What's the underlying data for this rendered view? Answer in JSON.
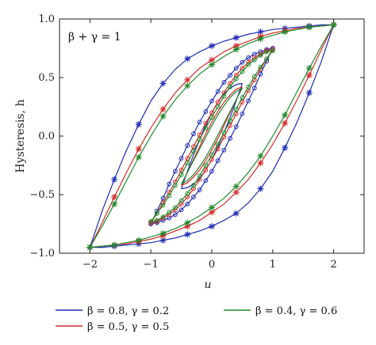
{
  "chart_data": {
    "type": "line",
    "xlabel": "u",
    "ylabel": "Hysteresis, h",
    "annotation": "β + γ = 1",
    "xlim": [
      -2.5,
      2.5
    ],
    "ylim": [
      -1.0,
      1.0
    ],
    "xticks": [
      -2,
      -1,
      0,
      1,
      2
    ],
    "yticks": [
      -1.0,
      -0.5,
      0.0,
      0.5,
      1.0
    ],
    "xtick_labels": [
      "−2",
      "−1",
      "0",
      "1",
      "2"
    ],
    "ytick_labels": [
      "−1.0",
      "−0.5",
      "0.0",
      "0.5",
      "1.0"
    ],
    "grid": false,
    "legend_position": "bottom",
    "series": [
      {
        "name": "β = 0.8, γ = 0.2",
        "color": "#1f2db4",
        "loops": [
          {
            "amplitude": 2,
            "marker": "asterisk",
            "upper": [
              [
                -2,
                -0.95
              ],
              [
                -1.8,
                -0.64
              ],
              [
                -1.6,
                -0.37
              ],
              [
                -1.4,
                -0.12
              ],
              [
                -1.2,
                0.1
              ],
              [
                -1.0,
                0.3
              ],
              [
                -0.8,
                0.45
              ],
              [
                -0.6,
                0.57
              ],
              [
                -0.4,
                0.66
              ],
              [
                -0.2,
                0.72
              ],
              [
                0.0,
                0.77
              ],
              [
                0.2,
                0.81
              ],
              [
                0.4,
                0.84
              ],
              [
                0.6,
                0.87
              ],
              [
                0.8,
                0.89
              ],
              [
                1.0,
                0.91
              ],
              [
                1.2,
                0.92
              ],
              [
                1.4,
                0.93
              ],
              [
                1.6,
                0.94
              ],
              [
                1.8,
                0.95
              ],
              [
                2.0,
                0.95
              ]
            ]
          },
          {
            "amplitude": 1,
            "marker": "circle",
            "upper": [
              [
                -1,
                -0.75
              ],
              [
                -0.9,
                -0.64
              ],
              [
                -0.8,
                -0.53
              ],
              [
                -0.7,
                -0.41
              ],
              [
                -0.6,
                -0.3
              ],
              [
                -0.5,
                -0.19
              ],
              [
                -0.4,
                -0.08
              ],
              [
                -0.3,
                0.02
              ],
              [
                -0.2,
                0.12
              ],
              [
                -0.1,
                0.21
              ],
              [
                0.0,
                0.3
              ],
              [
                0.1,
                0.38
              ],
              [
                0.2,
                0.46
              ],
              [
                0.3,
                0.52
              ],
              [
                0.4,
                0.58
              ],
              [
                0.5,
                0.63
              ],
              [
                0.6,
                0.67
              ],
              [
                0.7,
                0.7
              ],
              [
                0.8,
                0.72
              ],
              [
                0.9,
                0.74
              ],
              [
                1.0,
                0.75
              ]
            ]
          },
          {
            "amplitude": 0.5,
            "marker": "none",
            "upper": [
              [
                -0.5,
                -0.45
              ],
              [
                -0.4,
                -0.3
              ],
              [
                -0.3,
                -0.16
              ],
              [
                -0.2,
                -0.03
              ],
              [
                -0.1,
                0.09
              ],
              [
                0.0,
                0.2
              ],
              [
                0.1,
                0.29
              ],
              [
                0.2,
                0.36
              ],
              [
                0.3,
                0.41
              ],
              [
                0.4,
                0.44
              ],
              [
                0.5,
                0.45
              ]
            ]
          }
        ]
      },
      {
        "name": "β = 0.5, γ = 0.5",
        "color": "#d42a2a",
        "loops": [
          {
            "amplitude": 2,
            "marker": "asterisk",
            "upper": [
              [
                -2,
                -0.95
              ],
              [
                -1.8,
                -0.74
              ],
              [
                -1.6,
                -0.52
              ],
              [
                -1.4,
                -0.31
              ],
              [
                -1.2,
                -0.11
              ],
              [
                -1.0,
                0.07
              ],
              [
                -0.8,
                0.23
              ],
              [
                -0.6,
                0.37
              ],
              [
                -0.4,
                0.48
              ],
              [
                -0.2,
                0.58
              ],
              [
                0.0,
                0.65
              ],
              [
                0.2,
                0.72
              ],
              [
                0.4,
                0.77
              ],
              [
                0.6,
                0.81
              ],
              [
                0.8,
                0.85
              ],
              [
                1.0,
                0.88
              ],
              [
                1.2,
                0.9
              ],
              [
                1.4,
                0.92
              ],
              [
                1.6,
                0.93
              ],
              [
                1.8,
                0.94
              ],
              [
                2.0,
                0.95
              ]
            ]
          },
          {
            "amplitude": 1,
            "marker": "circle",
            "upper": [
              [
                -1,
                -0.74
              ],
              [
                -0.9,
                -0.66
              ],
              [
                -0.8,
                -0.57
              ],
              [
                -0.7,
                -0.48
              ],
              [
                -0.6,
                -0.39
              ],
              [
                -0.5,
                -0.29
              ],
              [
                -0.4,
                -0.19
              ],
              [
                -0.3,
                -0.09
              ],
              [
                -0.2,
                0.01
              ],
              [
                -0.1,
                0.11
              ],
              [
                0.0,
                0.2
              ],
              [
                0.1,
                0.29
              ],
              [
                0.2,
                0.37
              ],
              [
                0.3,
                0.45
              ],
              [
                0.4,
                0.52
              ],
              [
                0.5,
                0.58
              ],
              [
                0.6,
                0.63
              ],
              [
                0.7,
                0.67
              ],
              [
                0.8,
                0.7
              ],
              [
                0.9,
                0.73
              ],
              [
                1.0,
                0.74
              ]
            ]
          },
          {
            "amplitude": 0.5,
            "marker": "none",
            "upper": [
              [
                -0.5,
                -0.42
              ],
              [
                -0.4,
                -0.31
              ],
              [
                -0.3,
                -0.2
              ],
              [
                -0.2,
                -0.09
              ],
              [
                -0.1,
                0.02
              ],
              [
                0.0,
                0.12
              ],
              [
                0.1,
                0.21
              ],
              [
                0.2,
                0.29
              ],
              [
                0.3,
                0.35
              ],
              [
                0.4,
                0.4
              ],
              [
                0.5,
                0.42
              ]
            ]
          }
        ]
      },
      {
        "name": "β = 0.4, γ = 0.6",
        "color": "#1f8a2a",
        "loops": [
          {
            "amplitude": 2,
            "marker": "asterisk",
            "upper": [
              [
                -2,
                -0.95
              ],
              [
                -1.8,
                -0.77
              ],
              [
                -1.6,
                -0.58
              ],
              [
                -1.4,
                -0.38
              ],
              [
                -1.2,
                -0.18
              ],
              [
                -1.0,
                0.0
              ],
              [
                -0.8,
                0.17
              ],
              [
                -0.6,
                0.31
              ],
              [
                -0.4,
                0.43
              ],
              [
                -0.2,
                0.53
              ],
              [
                0.0,
                0.61
              ],
              [
                0.2,
                0.68
              ],
              [
                0.4,
                0.74
              ],
              [
                0.6,
                0.79
              ],
              [
                0.8,
                0.83
              ],
              [
                1.0,
                0.86
              ],
              [
                1.2,
                0.89
              ],
              [
                1.4,
                0.91
              ],
              [
                1.6,
                0.93
              ],
              [
                1.8,
                0.94
              ],
              [
                2.0,
                0.95
              ]
            ]
          },
          {
            "amplitude": 1,
            "marker": "circle",
            "upper": [
              [
                -1,
                -0.73
              ],
              [
                -0.9,
                -0.66
              ],
              [
                -0.8,
                -0.59
              ],
              [
                -0.7,
                -0.51
              ],
              [
                -0.6,
                -0.42
              ],
              [
                -0.5,
                -0.33
              ],
              [
                -0.4,
                -0.23
              ],
              [
                -0.3,
                -0.13
              ],
              [
                -0.2,
                -0.03
              ],
              [
                -0.1,
                0.07
              ],
              [
                0.0,
                0.16
              ],
              [
                0.1,
                0.25
              ],
              [
                0.2,
                0.34
              ],
              [
                0.3,
                0.42
              ],
              [
                0.4,
                0.49
              ],
              [
                0.5,
                0.55
              ],
              [
                0.6,
                0.61
              ],
              [
                0.7,
                0.65
              ],
              [
                0.8,
                0.69
              ],
              [
                0.9,
                0.72
              ],
              [
                1.0,
                0.73
              ]
            ]
          },
          {
            "amplitude": 0.5,
            "marker": "none",
            "upper": [
              [
                -0.5,
                -0.41
              ],
              [
                -0.4,
                -0.31
              ],
              [
                -0.3,
                -0.21
              ],
              [
                -0.2,
                -0.11
              ],
              [
                -0.1,
                -0.01
              ],
              [
                0.0,
                0.09
              ],
              [
                0.1,
                0.18
              ],
              [
                0.2,
                0.26
              ],
              [
                0.3,
                0.33
              ],
              [
                0.4,
                0.38
              ],
              [
                0.5,
                0.41
              ]
            ]
          }
        ]
      }
    ]
  }
}
